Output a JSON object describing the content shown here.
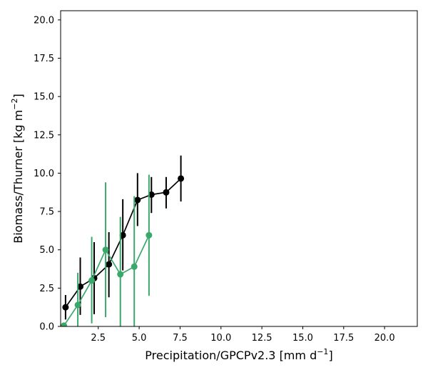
{
  "chart_data": {
    "type": "line",
    "title": "",
    "xlabel": "Precipitation/GPCPv2.3 [mm d",
    "xlabel_sup": "−1",
    "xlabel_end": "]",
    "ylabel": "Biomass/Thurner [kg m",
    "ylabel_sup": "−2",
    "ylabel_end": "]",
    "xlim": [
      0.2,
      22.0
    ],
    "ylim": [
      0.0,
      20.6
    ],
    "xticks": [
      2.5,
      5.0,
      7.5,
      10.0,
      12.5,
      15.0,
      17.5,
      20.0
    ],
    "xtick_labels": [
      "2.5",
      "5.0",
      "7.5",
      "10.0",
      "12.5",
      "15.0",
      "17.5",
      "20.0"
    ],
    "yticks": [
      0.0,
      2.5,
      5.0,
      7.5,
      10.0,
      12.5,
      15.0,
      17.5,
      20.0
    ],
    "ytick_labels": [
      "0.0",
      "2.5",
      "5.0",
      "7.5",
      "10.0",
      "12.5",
      "15.0",
      "17.5",
      "20.0"
    ],
    "grid": false,
    "legend": "none",
    "series": [
      {
        "color": "#000000",
        "x": [
          0.5,
          1.4,
          2.25,
          3.15,
          4.0,
          4.9,
          5.75,
          6.65,
          7.55
        ],
        "y": [
          1.25,
          2.6,
          3.15,
          4.05,
          5.95,
          8.25,
          8.6,
          8.75,
          9.65
        ],
        "yerr_low": [
          0.45,
          0.75,
          0.8,
          1.9,
          3.65,
          6.55,
          7.4,
          7.7,
          8.15
        ],
        "yerr_high": [
          2.05,
          4.5,
          5.5,
          6.15,
          8.3,
          10.0,
          9.75,
          9.75,
          11.15
        ]
      },
      {
        "color": "#3aa86b",
        "x": [
          0.4,
          1.25,
          2.1,
          2.95,
          3.85,
          4.7,
          5.6
        ],
        "y": [
          0.05,
          1.4,
          3.0,
          5.0,
          3.4,
          3.9,
          5.95
        ],
        "yerr_low": [
          0.0,
          0.0,
          0.2,
          0.6,
          0.0,
          0.0,
          2.0
        ],
        "yerr_high": [
          0.1,
          3.5,
          5.85,
          9.4,
          7.15,
          8.5,
          9.9
        ]
      }
    ]
  }
}
